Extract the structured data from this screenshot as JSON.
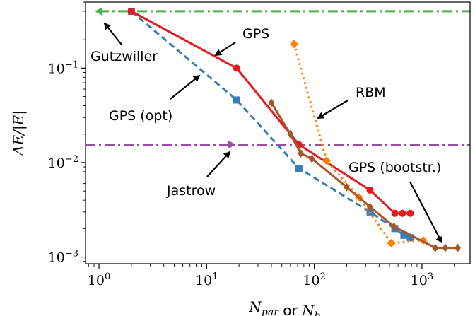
{
  "chart_data": {
    "type": "line",
    "xscale": "log",
    "yscale": "log",
    "xlim": [
      0.75,
      2800
    ],
    "ylim": [
      0.00085,
      0.5
    ],
    "xlabel": {
      "parts": [
        {
          "text": "N",
          "italic": true
        },
        {
          "text": "par",
          "italic": true,
          "sub": true
        },
        {
          "text": " or ",
          "italic": false
        },
        {
          "text": "N",
          "italic": true
        },
        {
          "text": "b",
          "italic": true,
          "sub": true
        }
      ]
    },
    "ylabel": "ΔE/|E|",
    "xticks": [
      {
        "value": 1,
        "mantissa": "10",
        "exponent": "0"
      },
      {
        "value": 10,
        "mantissa": "10",
        "exponent": "1"
      },
      {
        "value": 100,
        "mantissa": "10",
        "exponent": "2"
      },
      {
        "value": 1000,
        "mantissa": "10",
        "exponent": "3"
      }
    ],
    "yticks": [
      {
        "value": 0.001,
        "mantissa": "10",
        "exponent": "−3"
      },
      {
        "value": 0.01,
        "mantissa": "10",
        "exponent": "−2"
      },
      {
        "value": 0.1,
        "mantissa": "10",
        "exponent": "−1"
      }
    ],
    "grid": false,
    "legend": "none",
    "series": [
      {
        "name": "Gutzwiller",
        "color": "#4daf4a",
        "dash": "dashdot",
        "marker": "triangle-left",
        "x": [
          1,
          2800
        ],
        "y": [
          0.4,
          0.4
        ],
        "marker_points": [
          0
        ]
      },
      {
        "name": "Jastrow",
        "color": "#984ea3",
        "dash": "dashdot",
        "marker": "triangle-right",
        "x": [
          0.75,
          2800
        ],
        "y": [
          0.0155,
          0.0155
        ],
        "marker_x": [
          17
        ],
        "marker_y": [
          0.0155
        ]
      },
      {
        "name": "GPS (opt)",
        "color": "#377eb8",
        "dash": "dashed",
        "marker": "square",
        "x": [
          2,
          19,
          72,
          330,
          560,
          680,
          780
        ],
        "y": [
          0.4,
          0.046,
          0.0087,
          0.003,
          0.002,
          0.0017,
          0.0016
        ]
      },
      {
        "name": "GPS",
        "color": "#e41a1c",
        "dash": "solid",
        "marker": "circle",
        "x": [
          2,
          19,
          72,
          330,
          560,
          660,
          780
        ],
        "y": [
          0.4,
          0.1,
          0.0155,
          0.0051,
          0.0029,
          0.0029,
          0.0029
        ]
      },
      {
        "name": "RBM",
        "color": "#ff7f00",
        "dash": "dotted",
        "marker": "diamond",
        "x": [
          65,
          130,
          260,
          520,
          1030
        ],
        "y": [
          0.18,
          0.0105,
          0.0043,
          0.0014,
          0.0015
        ]
      },
      {
        "name": "GPS (bootstr.)",
        "color": "#a65628",
        "dash": "solid",
        "marker": "thin-diamond",
        "x": [
          40,
          60,
          75,
          95,
          200,
          330,
          550,
          1330,
          1650,
          2150
        ],
        "y": [
          0.043,
          0.02,
          0.0125,
          0.011,
          0.0055,
          0.0034,
          0.0021,
          0.00125,
          0.00125,
          0.00125
        ]
      }
    ],
    "annotations": [
      {
        "text": "Gutzwiller"
      },
      {
        "text": "GPS"
      },
      {
        "text": "GPS (opt)"
      },
      {
        "text": "RBM"
      },
      {
        "text": "Jastrow"
      },
      {
        "text": "GPS (bootstr.)"
      }
    ]
  }
}
